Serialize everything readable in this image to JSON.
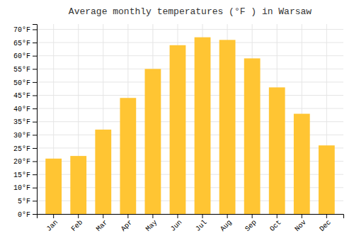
{
  "chart_data": {
    "type": "bar",
    "title": "Average monthly temperatures (°F ) in Warsaw",
    "categories": [
      "Jan",
      "Feb",
      "Mar",
      "Apr",
      "May",
      "Jun",
      "Jul",
      "Aug",
      "Sep",
      "Oct",
      "Nov",
      "Dec"
    ],
    "values": [
      21,
      22,
      32,
      44,
      55,
      64,
      67,
      66,
      59,
      48,
      38,
      26
    ],
    "color": "#FFC533",
    "ylim": [
      0,
      72
    ],
    "yticks": [
      {
        "value": 0,
        "label": "0°F"
      },
      {
        "value": 5,
        "label": "5°F"
      },
      {
        "value": 10,
        "label": "10°F"
      },
      {
        "value": 15,
        "label": "15°F"
      },
      {
        "value": 20,
        "label": "20°F"
      },
      {
        "value": 25,
        "label": "25°F"
      },
      {
        "value": 30,
        "label": "30°F"
      },
      {
        "value": 35,
        "label": "35°F"
      },
      {
        "value": 40,
        "label": "40°F"
      },
      {
        "value": 45,
        "label": "45°F"
      },
      {
        "value": 50,
        "label": "50°F"
      },
      {
        "value": 55,
        "label": "55°F"
      },
      {
        "value": 60,
        "label": "60°F"
      },
      {
        "value": 65,
        "label": "65°F"
      },
      {
        "value": 70,
        "label": "70°F"
      }
    ],
    "grid": true
  }
}
